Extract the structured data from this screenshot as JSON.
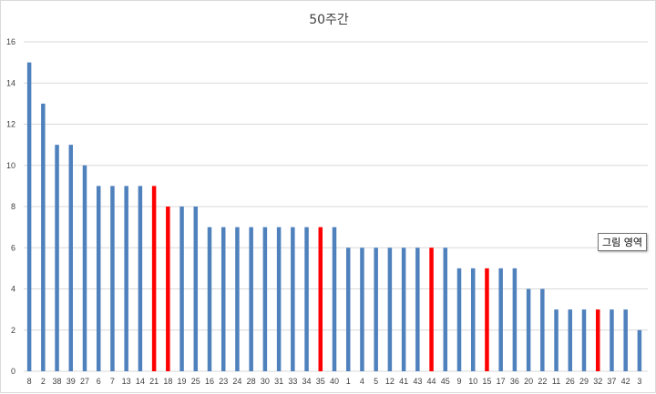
{
  "chart_data": {
    "type": "bar",
    "title": "50주간",
    "xlabel": "",
    "ylabel": "",
    "ylim": [
      0,
      16
    ],
    "yticks": [
      0,
      2,
      4,
      6,
      8,
      10,
      12,
      14,
      16
    ],
    "grid": true,
    "legend": "none",
    "categories": [
      "8",
      "2",
      "38",
      "39",
      "27",
      "6",
      "7",
      "13",
      "14",
      "21",
      "18",
      "19",
      "25",
      "16",
      "23",
      "24",
      "28",
      "30",
      "31",
      "33",
      "34",
      "35",
      "40",
      "1",
      "4",
      "5",
      "12",
      "41",
      "43",
      "44",
      "45",
      "9",
      "10",
      "15",
      "17",
      "36",
      "20",
      "22",
      "11",
      "26",
      "29",
      "32",
      "37",
      "42",
      "3"
    ],
    "values": [
      15,
      13,
      11,
      11,
      10,
      9,
      9,
      9,
      9,
      9,
      8,
      8,
      8,
      7,
      7,
      7,
      7,
      7,
      7,
      7,
      7,
      7,
      7,
      6,
      6,
      6,
      6,
      6,
      6,
      6,
      6,
      5,
      5,
      5,
      5,
      5,
      4,
      4,
      3,
      3,
      3,
      3,
      3,
      3,
      2
    ],
    "highlighted_categories": [
      "21",
      "18",
      "35",
      "44",
      "15",
      "32"
    ],
    "colors": {
      "default": "#4f81bd",
      "highlight": "#ff0000",
      "grid": "#d9d9d9"
    }
  },
  "tooltip": {
    "text": "그림 영역"
  }
}
